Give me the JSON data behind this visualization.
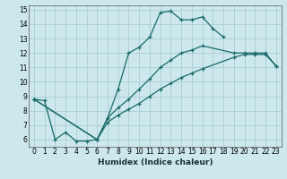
{
  "xlabel": "Humidex (Indice chaleur)",
  "bg_color": "#cce8ec",
  "grid_color": "#aacdd4",
  "line_color": "#1a6b6b",
  "xlim": [
    -0.5,
    23.5
  ],
  "ylim": [
    5.5,
    15.3
  ],
  "xticks": [
    0,
    1,
    2,
    3,
    4,
    5,
    6,
    7,
    8,
    9,
    10,
    11,
    12,
    13,
    14,
    15,
    16,
    17,
    18,
    19,
    20,
    21,
    22,
    23
  ],
  "yticks": [
    6,
    7,
    8,
    9,
    10,
    11,
    12,
    13,
    14,
    15
  ],
  "line1_x": [
    0,
    1,
    2,
    3,
    4,
    5,
    6,
    7,
    8,
    9,
    10,
    11,
    12,
    13,
    14,
    15,
    16,
    17,
    18
  ],
  "line1_y": [
    8.8,
    8.7,
    6.0,
    6.5,
    5.9,
    5.9,
    6.0,
    7.5,
    9.5,
    12.0,
    12.4,
    13.1,
    14.8,
    14.9,
    14.3,
    14.3,
    14.5,
    13.7,
    13.1
  ],
  "line2_x": [
    0,
    6,
    7,
    8,
    9,
    10,
    11,
    12,
    13,
    14,
    15,
    16,
    19,
    20,
    21,
    22,
    23
  ],
  "line2_y": [
    8.8,
    6.0,
    7.5,
    8.2,
    8.8,
    9.5,
    10.2,
    11.0,
    11.5,
    12.0,
    12.2,
    12.5,
    12.0,
    12.0,
    12.0,
    12.0,
    11.1
  ],
  "line3_x": [
    0,
    6,
    7,
    8,
    9,
    10,
    11,
    12,
    13,
    14,
    15,
    16,
    19,
    20,
    21,
    22,
    23
  ],
  "line3_y": [
    8.8,
    6.0,
    7.2,
    7.7,
    8.1,
    8.5,
    9.0,
    9.5,
    9.9,
    10.3,
    10.6,
    10.9,
    11.7,
    11.9,
    11.9,
    11.9,
    11.1
  ]
}
